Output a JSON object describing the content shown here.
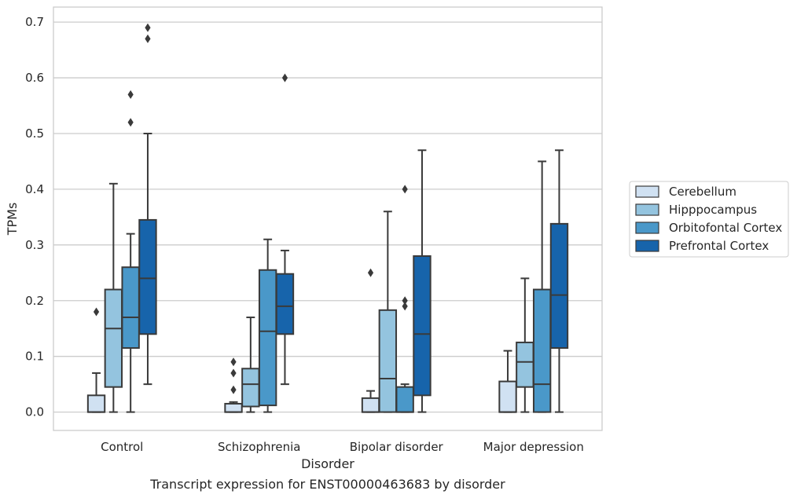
{
  "chart_data": {
    "type": "boxplot",
    "title": "",
    "caption": "Transcript expression for ENST00000463683 by disorder",
    "xlabel": "Disorder",
    "ylabel": "TPMs",
    "ylim": [
      -0.033,
      0.727
    ],
    "yticks": [
      0.0,
      0.1,
      0.2,
      0.3,
      0.4,
      0.5,
      0.6,
      0.7
    ],
    "ytick_labels": [
      "0.0",
      "0.1",
      "0.2",
      "0.3",
      "0.4",
      "0.5",
      "0.6",
      "0.7"
    ],
    "grid": "horizontal",
    "legend_position": "right",
    "categories": [
      "Control",
      "Schizophrenia",
      "Bipolar disorder",
      "Major depression"
    ],
    "series": [
      {
        "name": "Cerebellum",
        "color": "#d0e1f2",
        "boxes": [
          {
            "whislo": 0.0,
            "q1": 0.0,
            "med": 0.0,
            "q3": 0.03,
            "whishi": 0.07,
            "fliers": [
              0.18
            ]
          },
          {
            "whislo": 0.0,
            "q1": 0.0,
            "med": 0.0,
            "q3": 0.015,
            "whishi": 0.018,
            "fliers": [
              0.04,
              0.07,
              0.09
            ]
          },
          {
            "whislo": 0.0,
            "q1": 0.0,
            "med": 0.0,
            "q3": 0.025,
            "whishi": 0.038,
            "fliers": [
              0.25
            ]
          },
          {
            "whislo": 0.0,
            "q1": 0.0,
            "med": 0.0,
            "q3": 0.055,
            "whishi": 0.11,
            "fliers": []
          }
        ]
      },
      {
        "name": "Hipppocampus",
        "color": "#94c4df",
        "boxes": [
          {
            "whislo": 0.0,
            "q1": 0.045,
            "med": 0.15,
            "q3": 0.22,
            "whishi": 0.41,
            "fliers": []
          },
          {
            "whislo": 0.0,
            "q1": 0.01,
            "med": 0.05,
            "q3": 0.078,
            "whishi": 0.17,
            "fliers": []
          },
          {
            "whislo": 0.0,
            "q1": 0.0,
            "med": 0.06,
            "q3": 0.183,
            "whishi": 0.36,
            "fliers": []
          },
          {
            "whislo": 0.0,
            "q1": 0.045,
            "med": 0.09,
            "q3": 0.125,
            "whishi": 0.24,
            "fliers": []
          }
        ]
      },
      {
        "name": "Orbitofontal Cortex",
        "color": "#4a98c9",
        "boxes": [
          {
            "whislo": 0.0,
            "q1": 0.115,
            "med": 0.17,
            "q3": 0.26,
            "whishi": 0.32,
            "fliers": [
              0.52,
              0.57
            ]
          },
          {
            "whislo": 0.0,
            "q1": 0.012,
            "med": 0.145,
            "q3": 0.255,
            "whishi": 0.31,
            "fliers": []
          },
          {
            "whislo": 0.0,
            "q1": 0.0,
            "med": 0.0,
            "q3": 0.045,
            "whishi": 0.05,
            "fliers": [
              0.19,
              0.2,
              0.4
            ]
          },
          {
            "whislo": 0.0,
            "q1": 0.0,
            "med": 0.05,
            "q3": 0.22,
            "whishi": 0.45,
            "fliers": []
          }
        ]
      },
      {
        "name": "Prefrontal Cortex",
        "color": "#1764ab",
        "boxes": [
          {
            "whislo": 0.05,
            "q1": 0.14,
            "med": 0.24,
            "q3": 0.345,
            "whishi": 0.5,
            "fliers": [
              0.67,
              0.69
            ]
          },
          {
            "whislo": 0.05,
            "q1": 0.14,
            "med": 0.19,
            "q3": 0.248,
            "whishi": 0.29,
            "fliers": [
              0.6
            ]
          },
          {
            "whislo": 0.0,
            "q1": 0.03,
            "med": 0.14,
            "q3": 0.28,
            "whishi": 0.47,
            "fliers": []
          },
          {
            "whislo": 0.0,
            "q1": 0.115,
            "med": 0.21,
            "q3": 0.338,
            "whishi": 0.47,
            "fliers": []
          }
        ]
      }
    ]
  }
}
